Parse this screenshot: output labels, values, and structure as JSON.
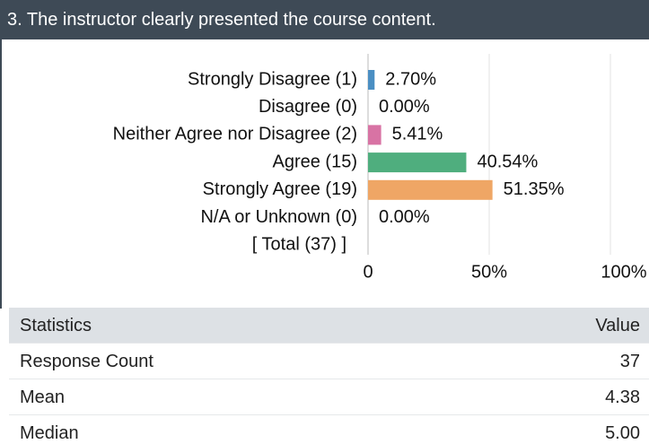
{
  "header": {
    "title": "3. The instructor clearly presented the course content."
  },
  "chart_data": {
    "type": "bar",
    "orientation": "horizontal",
    "categories": [
      "Strongly Disagree (1)",
      "Disagree (0)",
      "Neither Agree nor Disagree (2)",
      "Agree (15)",
      "Strongly Agree (19)",
      "N/A or Unknown (0)"
    ],
    "series": [
      {
        "name": "Responses",
        "colors": [
          "#4b8fc3",
          "#9aa0a6",
          "#d873a4",
          "#4fae7e",
          "#efa665",
          "#9aa0a6"
        ],
        "values": [
          2.7,
          0.0,
          5.41,
          40.54,
          51.35,
          0.0
        ],
        "value_labels": [
          "2.70%",
          "0.00%",
          "5.41%",
          "40.54%",
          "51.35%",
          "0.00%"
        ]
      }
    ],
    "total_label": "[ Total (37) ]",
    "xlim": [
      0,
      100
    ],
    "xticks": [
      0,
      {
        "value": 50,
        "label": "50%"
      },
      {
        "value": 100,
        "label": "100%"
      }
    ],
    "grid": true
  },
  "table": {
    "columns": [
      "Statistics",
      "Value"
    ],
    "rows": [
      [
        "Response Count",
        "37"
      ],
      [
        "Mean",
        "4.38"
      ],
      [
        "Median",
        "5.00"
      ]
    ]
  }
}
